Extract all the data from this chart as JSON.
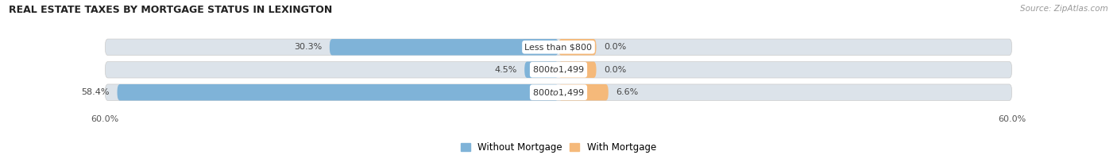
{
  "title": "REAL ESTATE TAXES BY MORTGAGE STATUS IN LEXINGTON",
  "source": "Source: ZipAtlas.com",
  "bars": [
    {
      "label": "Less than $800",
      "without_mortgage": 30.3,
      "with_mortgage": 0.0,
      "with_mortgage_display": 5.0
    },
    {
      "label": "$800 to $1,499",
      "without_mortgage": 4.5,
      "with_mortgage": 0.0,
      "with_mortgage_display": 5.0
    },
    {
      "label": "$800 to $1,499",
      "without_mortgage": 58.4,
      "with_mortgage": 6.6,
      "with_mortgage_display": 6.6
    }
  ],
  "max_value": 60.0,
  "color_without": "#7fb3d8",
  "color_with": "#f5b97a",
  "color_bar_bg": "#dce3ea",
  "bar_height": 0.72,
  "legend_labels": [
    "Without Mortgage",
    "With Mortgage"
  ],
  "x_ticks": [
    -60.0,
    60.0
  ],
  "x_tick_labels": [
    "60.0%",
    "60.0%"
  ],
  "figsize": [
    14.06,
    1.95
  ],
  "dpi": 100
}
